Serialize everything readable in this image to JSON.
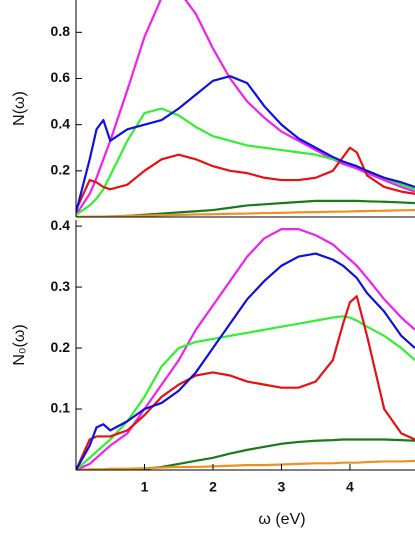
{
  "chart_data": [
    {
      "type": "line",
      "y_label": "N(ω)",
      "xlim": [
        0,
        4.95
      ],
      "ylim": [
        0,
        0.94
      ],
      "yticks": [
        0.2,
        0.4,
        0.6,
        0.8
      ],
      "x": [
        0,
        0.2,
        0.3,
        0.4,
        0.5,
        0.75,
        1,
        1.25,
        1.5,
        1.75,
        2,
        2.25,
        2.5,
        2.75,
        3,
        3.25,
        3.5,
        3.75,
        3.9,
        4,
        4.1,
        4.25,
        4.5,
        4.75,
        4.95
      ],
      "series": [
        {
          "color": "#1a7a1a",
          "values": [
            0,
            0,
            0,
            0,
            0,
            0.005,
            0.01,
            0.015,
            0.02,
            0.025,
            0.03,
            0.04,
            0.05,
            0.055,
            0.06,
            0.065,
            0.07,
            0.07,
            0.07,
            0.07,
            0.07,
            0.068,
            0.066,
            0.063,
            0.06
          ]
        },
        {
          "color": "#f0901e",
          "values": [
            0,
            0.001,
            0.002,
            0.002,
            0.003,
            0.005,
            0.006,
            0.008,
            0.009,
            0.011,
            0.012,
            0.014,
            0.015,
            0.017,
            0.018,
            0.02,
            0.021,
            0.023,
            0.023,
            0.024,
            0.025,
            0.026,
            0.027,
            0.029,
            0.03
          ]
        },
        {
          "color": "#f020f0",
          "values": [
            0.01,
            0.1,
            0.17,
            0.25,
            0.33,
            0.55,
            0.78,
            0.95,
            0.98,
            0.88,
            0.73,
            0.6,
            0.5,
            0.43,
            0.37,
            0.33,
            0.29,
            0.25,
            0.23,
            0.22,
            0.21,
            0.19,
            0.16,
            0.13,
            0.11
          ]
        },
        {
          "color": "#30f030",
          "values": [
            0.01,
            0.05,
            0.08,
            0.12,
            0.18,
            0.33,
            0.45,
            0.47,
            0.44,
            0.39,
            0.35,
            0.33,
            0.31,
            0.3,
            0.29,
            0.28,
            0.27,
            0.25,
            0.24,
            0.23,
            0.22,
            0.2,
            0.17,
            0.14,
            0.12
          ]
        },
        {
          "color": "#e81010",
          "values": [
            0.03,
            0.16,
            0.15,
            0.13,
            0.12,
            0.14,
            0.2,
            0.25,
            0.27,
            0.25,
            0.22,
            0.2,
            0.19,
            0.17,
            0.16,
            0.16,
            0.17,
            0.2,
            0.26,
            0.3,
            0.28,
            0.18,
            0.13,
            0.11,
            0.1
          ]
        },
        {
          "color": "#1010e0",
          "values": [
            0.02,
            0.25,
            0.38,
            0.42,
            0.33,
            0.38,
            0.4,
            0.42,
            0.47,
            0.53,
            0.59,
            0.61,
            0.58,
            0.48,
            0.4,
            0.34,
            0.3,
            0.26,
            0.24,
            0.23,
            0.22,
            0.2,
            0.17,
            0.15,
            0.13
          ]
        }
      ]
    },
    {
      "type": "line",
      "y_label": "N₀(ω)",
      "x_label": "ω (eV)",
      "xlim": [
        0,
        4.95
      ],
      "ylim": [
        0,
        0.41
      ],
      "yticks": [
        0.1,
        0.2,
        0.3,
        0.4
      ],
      "xticks": [
        1,
        2,
        3,
        4
      ],
      "x": [
        0,
        0.2,
        0.3,
        0.4,
        0.5,
        0.75,
        1,
        1.25,
        1.5,
        1.75,
        2,
        2.25,
        2.5,
        2.75,
        3,
        3.25,
        3.5,
        3.75,
        3.9,
        4,
        4.1,
        4.25,
        4.5,
        4.75,
        4.95
      ],
      "series": [
        {
          "color": "#1a7a1a",
          "values": [
            0,
            0,
            0,
            0,
            0,
            0.001,
            0.002,
            0.005,
            0.01,
            0.015,
            0.02,
            0.027,
            0.033,
            0.038,
            0.043,
            0.046,
            0.048,
            0.049,
            0.05,
            0.05,
            0.05,
            0.05,
            0.05,
            0.049,
            0.048
          ]
        },
        {
          "color": "#f0901e",
          "values": [
            0,
            0.001,
            0.001,
            0.001,
            0.002,
            0.002,
            0.003,
            0.004,
            0.005,
            0.005,
            0.006,
            0.007,
            0.008,
            0.008,
            0.009,
            0.01,
            0.011,
            0.011,
            0.012,
            0.012,
            0.012,
            0.013,
            0.014,
            0.014,
            0.015
          ]
        },
        {
          "color": "#f020f0",
          "values": [
            0,
            0.01,
            0.02,
            0.03,
            0.04,
            0.06,
            0.1,
            0.14,
            0.18,
            0.23,
            0.27,
            0.31,
            0.35,
            0.38,
            0.395,
            0.395,
            0.385,
            0.37,
            0.355,
            0.345,
            0.335,
            0.315,
            0.28,
            0.25,
            0.23
          ]
        },
        {
          "color": "#30f030",
          "values": [
            0,
            0.02,
            0.03,
            0.04,
            0.05,
            0.08,
            0.12,
            0.17,
            0.2,
            0.21,
            0.215,
            0.22,
            0.225,
            0.23,
            0.235,
            0.24,
            0.245,
            0.25,
            0.252,
            0.25,
            0.245,
            0.235,
            0.22,
            0.2,
            0.18
          ]
        },
        {
          "color": "#e81010",
          "values": [
            0,
            0.05,
            0.055,
            0.055,
            0.055,
            0.065,
            0.09,
            0.12,
            0.14,
            0.155,
            0.16,
            0.155,
            0.145,
            0.14,
            0.135,
            0.135,
            0.145,
            0.18,
            0.24,
            0.275,
            0.285,
            0.22,
            0.1,
            0.06,
            0.05
          ]
        },
        {
          "color": "#1010e0",
          "values": [
            0,
            0.04,
            0.07,
            0.075,
            0.065,
            0.08,
            0.1,
            0.11,
            0.13,
            0.16,
            0.2,
            0.24,
            0.28,
            0.31,
            0.335,
            0.35,
            0.355,
            0.345,
            0.335,
            0.325,
            0.315,
            0.29,
            0.26,
            0.22,
            0.2
          ]
        }
      ]
    }
  ]
}
